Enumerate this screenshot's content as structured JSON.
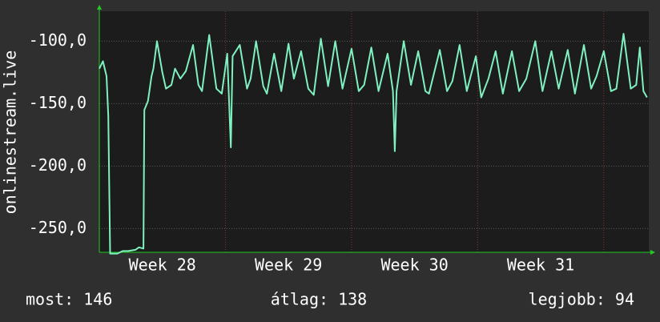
{
  "chart_data": {
    "type": "line",
    "y_label": "onlinestream.live",
    "color": "#7ff0bf",
    "ylim": [
      -269,
      -76
    ],
    "yticks": [
      {
        "value": -100,
        "label": "-100,0"
      },
      {
        "value": -150,
        "label": "-150,0"
      },
      {
        "value": -200,
        "label": "-200,0"
      },
      {
        "value": -250,
        "label": "-250,0"
      }
    ],
    "xlim": [
      0,
      30.5
    ],
    "xticks": [
      {
        "value": 3.5,
        "label": "Week 28"
      },
      {
        "value": 10.5,
        "label": "Week 29"
      },
      {
        "value": 17.5,
        "label": "Week 30"
      },
      {
        "value": 24.5,
        "label": "Week 31"
      }
    ],
    "xgrid": [
      7,
      14,
      21,
      28
    ],
    "grid": true,
    "x": [
      0,
      0.2,
      0.4,
      0.5,
      0.6,
      1,
      1.3,
      1.6,
      2,
      2.2,
      2.45,
      2.5,
      2.7,
      2.9,
      3.0,
      3.2,
      3.5,
      3.7,
      4.0,
      4.2,
      4.5,
      4.8,
      5.2,
      5.5,
      5.7,
      6.1,
      6.5,
      6.8,
      7.1,
      7.3,
      7.4,
      7.8,
      8.2,
      8.4,
      8.7,
      9.1,
      9.3,
      9.7,
      10.1,
      10.5,
      10.8,
      11.2,
      11.6,
      11.9,
      12.3,
      12.7,
      13.1,
      13.5,
      14.0,
      14.4,
      14.7,
      15.1,
      15.5,
      16.0,
      16.3,
      16.4,
      16.5,
      16.9,
      17.3,
      17.7,
      18.1,
      18.3,
      18.9,
      19.3,
      19.6,
      20.0,
      20.4,
      20.9,
      21.2,
      21.6,
      22.0,
      22.4,
      22.9,
      23.3,
      23.7,
      24.2,
      24.6,
      25.1,
      25.5,
      26.0,
      26.4,
      26.9,
      27.3,
      27.6,
      28.0,
      28.4,
      28.7,
      29.1,
      29.5,
      29.8,
      30.0,
      30.2,
      30.4
    ],
    "values": [
      -122,
      -116,
      -128,
      -160,
      -270,
      -270,
      -268,
      -268,
      -267,
      -265,
      -266,
      -155,
      -148,
      -128,
      -122,
      -100,
      -125,
      -138,
      -135,
      -122,
      -130,
      -124,
      -103,
      -135,
      -140,
      -95,
      -138,
      -142,
      -110,
      -185,
      -112,
      -103,
      -138,
      -130,
      -100,
      -136,
      -142,
      -110,
      -140,
      -102,
      -130,
      -108,
      -138,
      -143,
      -98,
      -136,
      -100,
      -138,
      -106,
      -140,
      -135,
      -105,
      -140,
      -110,
      -140,
      -188,
      -140,
      -100,
      -135,
      -108,
      -140,
      -142,
      -107,
      -140,
      -132,
      -103,
      -140,
      -112,
      -145,
      -130,
      -108,
      -142,
      -108,
      -140,
      -130,
      -100,
      -140,
      -108,
      -138,
      -107,
      -142,
      -103,
      -138,
      -128,
      -108,
      -140,
      -138,
      -94,
      -138,
      -135,
      -105,
      -140,
      -145
    ]
  },
  "footer": {
    "current": "most: 146",
    "average": "átlag: 138",
    "best": "legjobb: 94"
  }
}
